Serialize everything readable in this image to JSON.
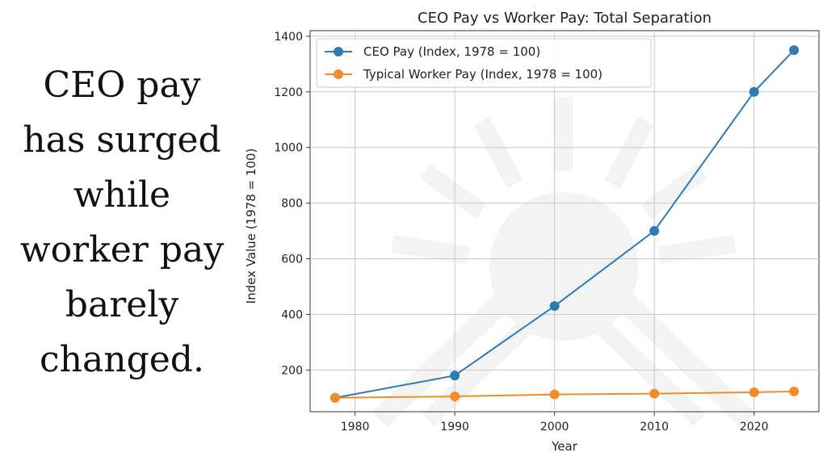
{
  "caption": {
    "lines": [
      "CEO pay",
      "has surged",
      "while",
      "worker pay",
      "barely",
      "changed."
    ]
  },
  "chart_data": {
    "type": "line",
    "title": "CEO Pay vs Worker Pay: Total Separation",
    "xlabel": "Year",
    "ylabel": "Index Value (1978 = 100)",
    "x": [
      1978,
      1990,
      2000,
      2010,
      2020,
      2024
    ],
    "xticks": [
      1980,
      1990,
      2000,
      2010,
      2020
    ],
    "yticks": [
      200,
      400,
      600,
      800,
      1000,
      1200,
      1400
    ],
    "xlim": [
      1975.5,
      2026.5
    ],
    "ylim": [
      50,
      1420
    ],
    "grid": true,
    "legend_position": "top-left",
    "series": [
      {
        "name": "CEO Pay (Index, 1978 = 100)",
        "color": "#2f7bb3",
        "values": [
          100,
          180,
          430,
          700,
          1200,
          1350
        ]
      },
      {
        "name": "Typical Worker Pay (Index, 1978 = 100)",
        "color": "#f28c28",
        "values": [
          100,
          105,
          112,
          115,
          120,
          123
        ]
      }
    ]
  }
}
